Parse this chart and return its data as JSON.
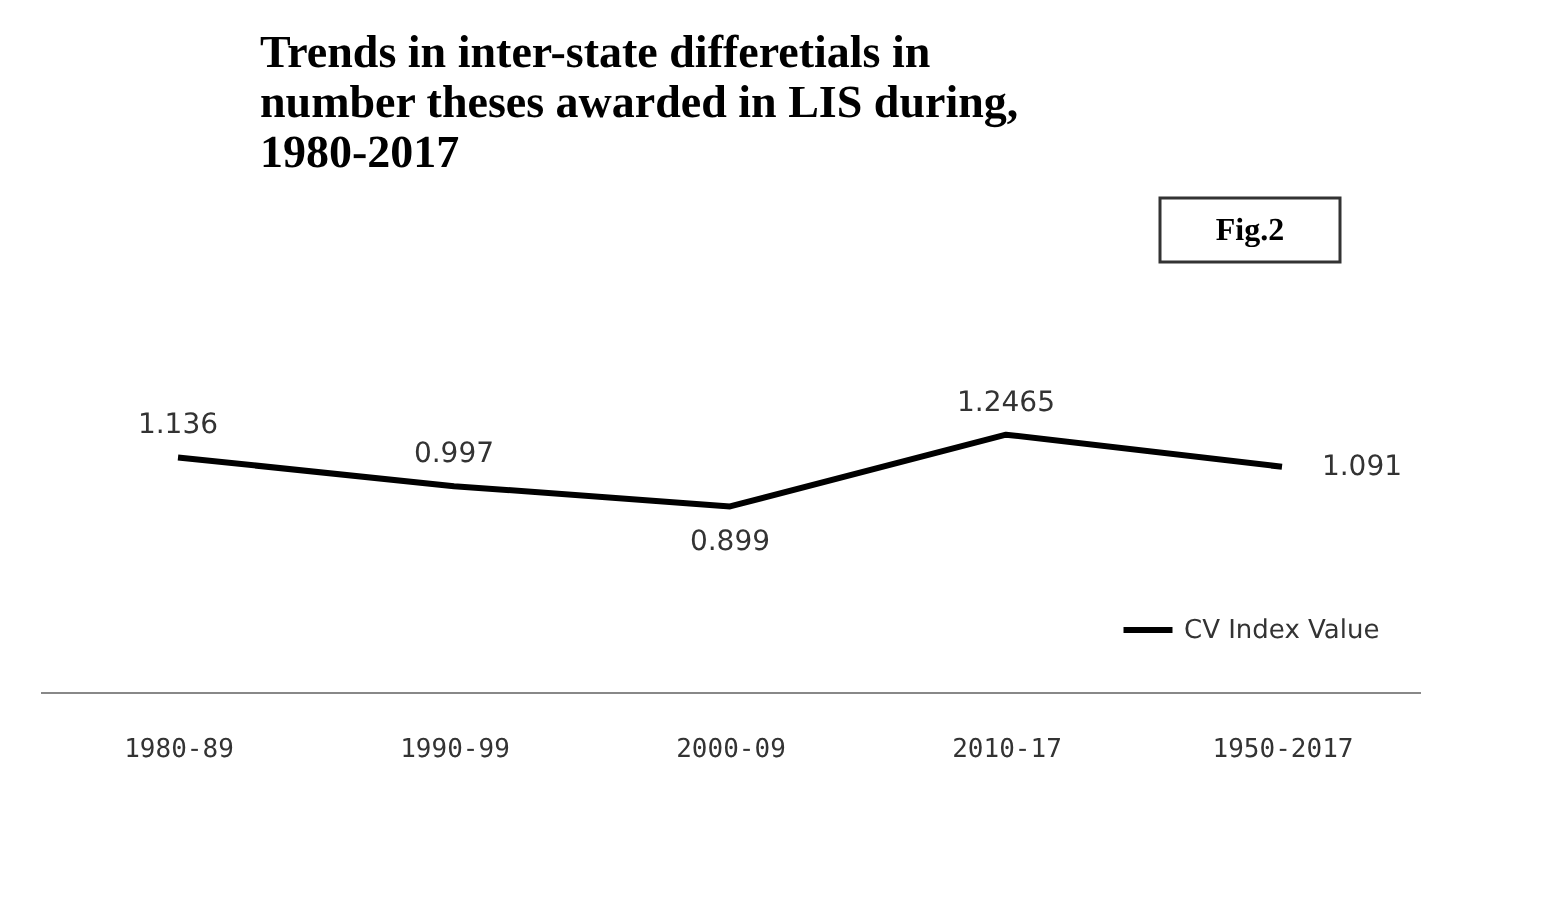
{
  "chart_data": {
    "type": "line",
    "title": "Trends in inter-state differetials in number theses awarded in LIS during, 1980-2017",
    "categories": [
      "1980-89",
      "1990-99",
      "2000-09",
      "2010-17",
      "1950-2017"
    ],
    "series": [
      {
        "name": "CV Index Value",
        "color": "#000000",
        "values": [
          1.136,
          0.997,
          0.899,
          1.2465,
          1.091
        ]
      }
    ],
    "annotations": [
      "Fig.2"
    ],
    "data_labels": true,
    "legend": "bottom right",
    "grid": false,
    "marker": "none",
    "line_style": "solid"
  }
}
